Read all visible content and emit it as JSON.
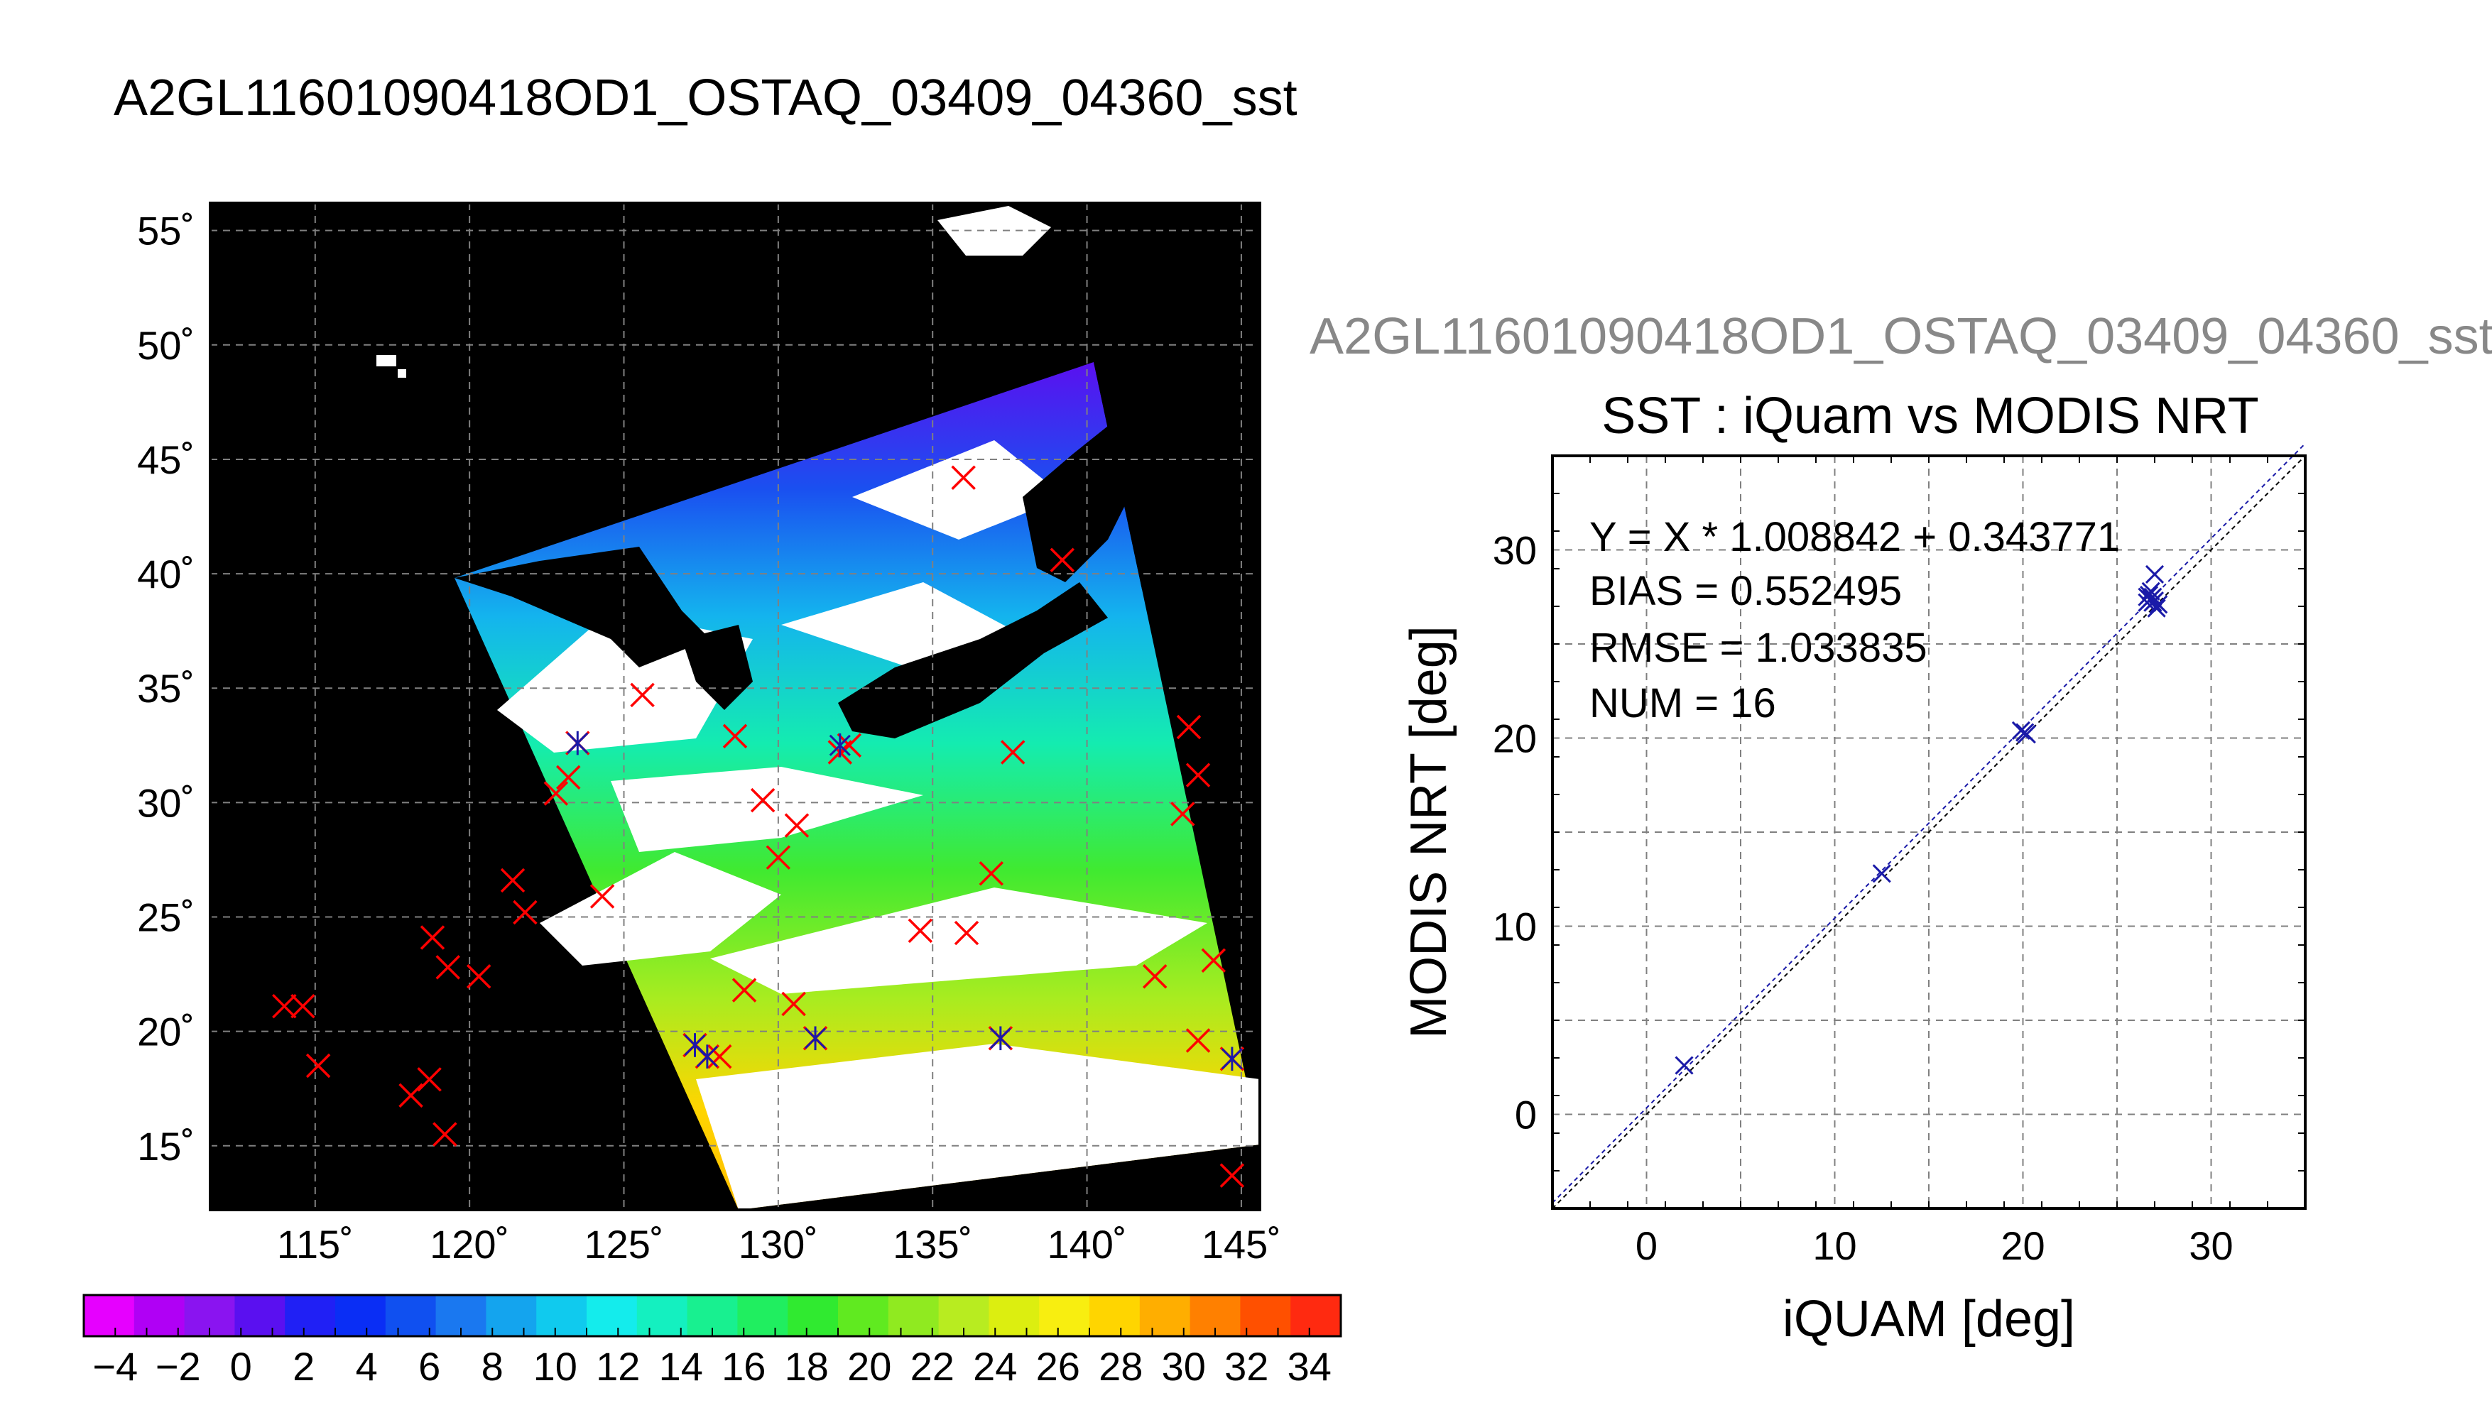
{
  "page": {
    "title": "A2GL11601090418OD1_OSTAQ_03409_04360_sst",
    "scatter_overlay_title": "A2GL11601090418OD1_OSTAQ_03409_04360_sst"
  },
  "chart_data": [
    {
      "type": "map",
      "title": "",
      "lon_range": [
        111.6,
        145.6
      ],
      "lat_range": [
        12.2,
        56.2
      ],
      "lon_ticks": [
        115,
        120,
        125,
        130,
        135,
        140,
        145
      ],
      "lat_ticks": [
        15,
        20,
        25,
        30,
        35,
        40,
        45,
        50,
        55
      ],
      "lon_tick_labels": [
        "115˚",
        "120˚",
        "125˚",
        "130˚",
        "135˚",
        "140˚",
        "145˚"
      ],
      "lat_tick_labels": [
        "15˚",
        "20˚",
        "25˚",
        "30˚",
        "35˚",
        "40˚",
        "45˚",
        "50˚",
        "55˚"
      ],
      "grid": true,
      "background_color": "#000000",
      "match_points": [
        {
          "lon": 114.0,
          "lat": 21.1
        },
        {
          "lon": 114.6,
          "lat": 21.1
        },
        {
          "lon": 115.1,
          "lat": 18.5
        },
        {
          "lon": 118.1,
          "lat": 17.2
        },
        {
          "lon": 118.7,
          "lat": 17.9
        },
        {
          "lon": 118.8,
          "lat": 24.1
        },
        {
          "lon": 119.3,
          "lat": 22.8
        },
        {
          "lon": 119.2,
          "lat": 15.5
        },
        {
          "lon": 120.3,
          "lat": 22.4
        },
        {
          "lon": 121.4,
          "lat": 26.6
        },
        {
          "lon": 121.8,
          "lat": 25.2
        },
        {
          "lon": 122.8,
          "lat": 30.4
        },
        {
          "lon": 123.2,
          "lat": 31.1
        },
        {
          "lon": 123.5,
          "lat": 32.6
        },
        {
          "lon": 124.3,
          "lat": 25.9
        },
        {
          "lon": 125.6,
          "lat": 34.7
        },
        {
          "lon": 127.3,
          "lat": 19.4
        },
        {
          "lon": 127.7,
          "lat": 18.9
        },
        {
          "lon": 128.1,
          "lat": 18.9
        },
        {
          "lon": 128.6,
          "lat": 32.9
        },
        {
          "lon": 128.9,
          "lat": 21.8
        },
        {
          "lon": 129.5,
          "lat": 30.1
        },
        {
          "lon": 130.0,
          "lat": 27.6
        },
        {
          "lon": 130.5,
          "lat": 21.2
        },
        {
          "lon": 130.6,
          "lat": 29.0
        },
        {
          "lon": 131.2,
          "lat": 19.7
        },
        {
          "lon": 132.0,
          "lat": 32.2
        },
        {
          "lon": 132.3,
          "lat": 32.5
        },
        {
          "lon": 134.6,
          "lat": 24.4
        },
        {
          "lon": 136.1,
          "lat": 24.3
        },
        {
          "lon": 136.0,
          "lat": 44.2
        },
        {
          "lon": 136.9,
          "lat": 26.9
        },
        {
          "lon": 137.2,
          "lat": 19.7
        },
        {
          "lon": 137.6,
          "lat": 32.2
        },
        {
          "lon": 139.2,
          "lat": 40.6
        },
        {
          "lon": 142.2,
          "lat": 22.4
        },
        {
          "lon": 143.1,
          "lat": 29.5
        },
        {
          "lon": 143.3,
          "lat": 33.3
        },
        {
          "lon": 143.6,
          "lat": 31.2
        },
        {
          "lon": 143.6,
          "lat": 19.6
        },
        {
          "lon": 144.1,
          "lat": 23.1
        },
        {
          "lon": 144.7,
          "lat": 18.8
        },
        {
          "lon": 144.7,
          "lat": 13.7
        }
      ],
      "matched_in_swath": [
        {
          "lon": 123.5,
          "lat": 32.6
        },
        {
          "lon": 127.3,
          "lat": 19.4
        },
        {
          "lon": 127.7,
          "lat": 18.9
        },
        {
          "lon": 131.2,
          "lat": 19.7
        },
        {
          "lon": 132.0,
          "lat": 32.5
        },
        {
          "lon": 137.2,
          "lat": 19.7
        },
        {
          "lon": 144.7,
          "lat": 18.8
        }
      ],
      "colors": {
        "red_marker": "#ff0000",
        "blue_marker": "#1a1aa8",
        "grid": "#808080"
      }
    },
    {
      "type": "colorbar",
      "min": -5,
      "max": 35,
      "step": 2,
      "tick_values": [
        -4,
        -2,
        0,
        2,
        4,
        6,
        8,
        10,
        12,
        14,
        16,
        18,
        20,
        22,
        24,
        26,
        28,
        30,
        32,
        34
      ],
      "tick_labels": [
        "−4",
        "−2",
        "0",
        "2",
        "4",
        "6",
        "8",
        "10",
        "12",
        "14",
        "16",
        "18",
        "20",
        "22",
        "24",
        "26",
        "28",
        "30",
        "32",
        "34"
      ],
      "colors": [
        "#e600ff",
        "#b000f5",
        "#8a14f0",
        "#5a10f0",
        "#2020f5",
        "#0a2ef5",
        "#1050f0",
        "#1a78f0",
        "#14a4ee",
        "#10caee",
        "#14ecec",
        "#14f0c0",
        "#18f090",
        "#20ee60",
        "#30ea30",
        "#60ea20",
        "#90ea20",
        "#b8ec20",
        "#dcee10",
        "#f8ee10",
        "#ffd500",
        "#ffae00",
        "#ff8000",
        "#ff5000",
        "#ff2a10"
      ]
    },
    {
      "type": "scatter",
      "title": "SST : iQuam vs MODIS NRT",
      "xlabel": "iQUAM [deg]",
      "ylabel": "MODIS NRT [deg]",
      "xlim": [
        -5,
        35
      ],
      "ylim": [
        -5,
        35
      ],
      "x_ticks": [
        0,
        10,
        20,
        30
      ],
      "y_ticks": [
        0,
        10,
        20,
        30
      ],
      "grid": true,
      "annotations": [
        "Y = X * 1.008842 + 0.343771",
        "BIAS = 0.552495",
        "RMSE = 1.033835",
        "NUM = 16"
      ],
      "fit": {
        "slope": 1.008842,
        "intercept": 0.343771
      },
      "points": [
        {
          "x": 2.0,
          "y": 2.6
        },
        {
          "x": 12.5,
          "y": 12.8
        },
        {
          "x": 19.9,
          "y": 20.4
        },
        {
          "x": 20.1,
          "y": 20.3
        },
        {
          "x": 20.2,
          "y": 20.2
        },
        {
          "x": 26.6,
          "y": 27.5
        },
        {
          "x": 26.8,
          "y": 27.4
        },
        {
          "x": 27.0,
          "y": 28.7
        },
        {
          "x": 26.7,
          "y": 27.6
        },
        {
          "x": 26.9,
          "y": 27.2
        },
        {
          "x": 27.1,
          "y": 26.9
        },
        {
          "x": 26.8,
          "y": 27.8
        },
        {
          "x": 27.0,
          "y": 27.3
        },
        {
          "x": 26.6,
          "y": 27.2
        },
        {
          "x": 26.9,
          "y": 27.5
        },
        {
          "x": 27.2,
          "y": 27.1
        }
      ],
      "colors": {
        "points": "#1a1aa8",
        "line": "#1a1aa8",
        "grid": "#808080"
      }
    }
  ]
}
